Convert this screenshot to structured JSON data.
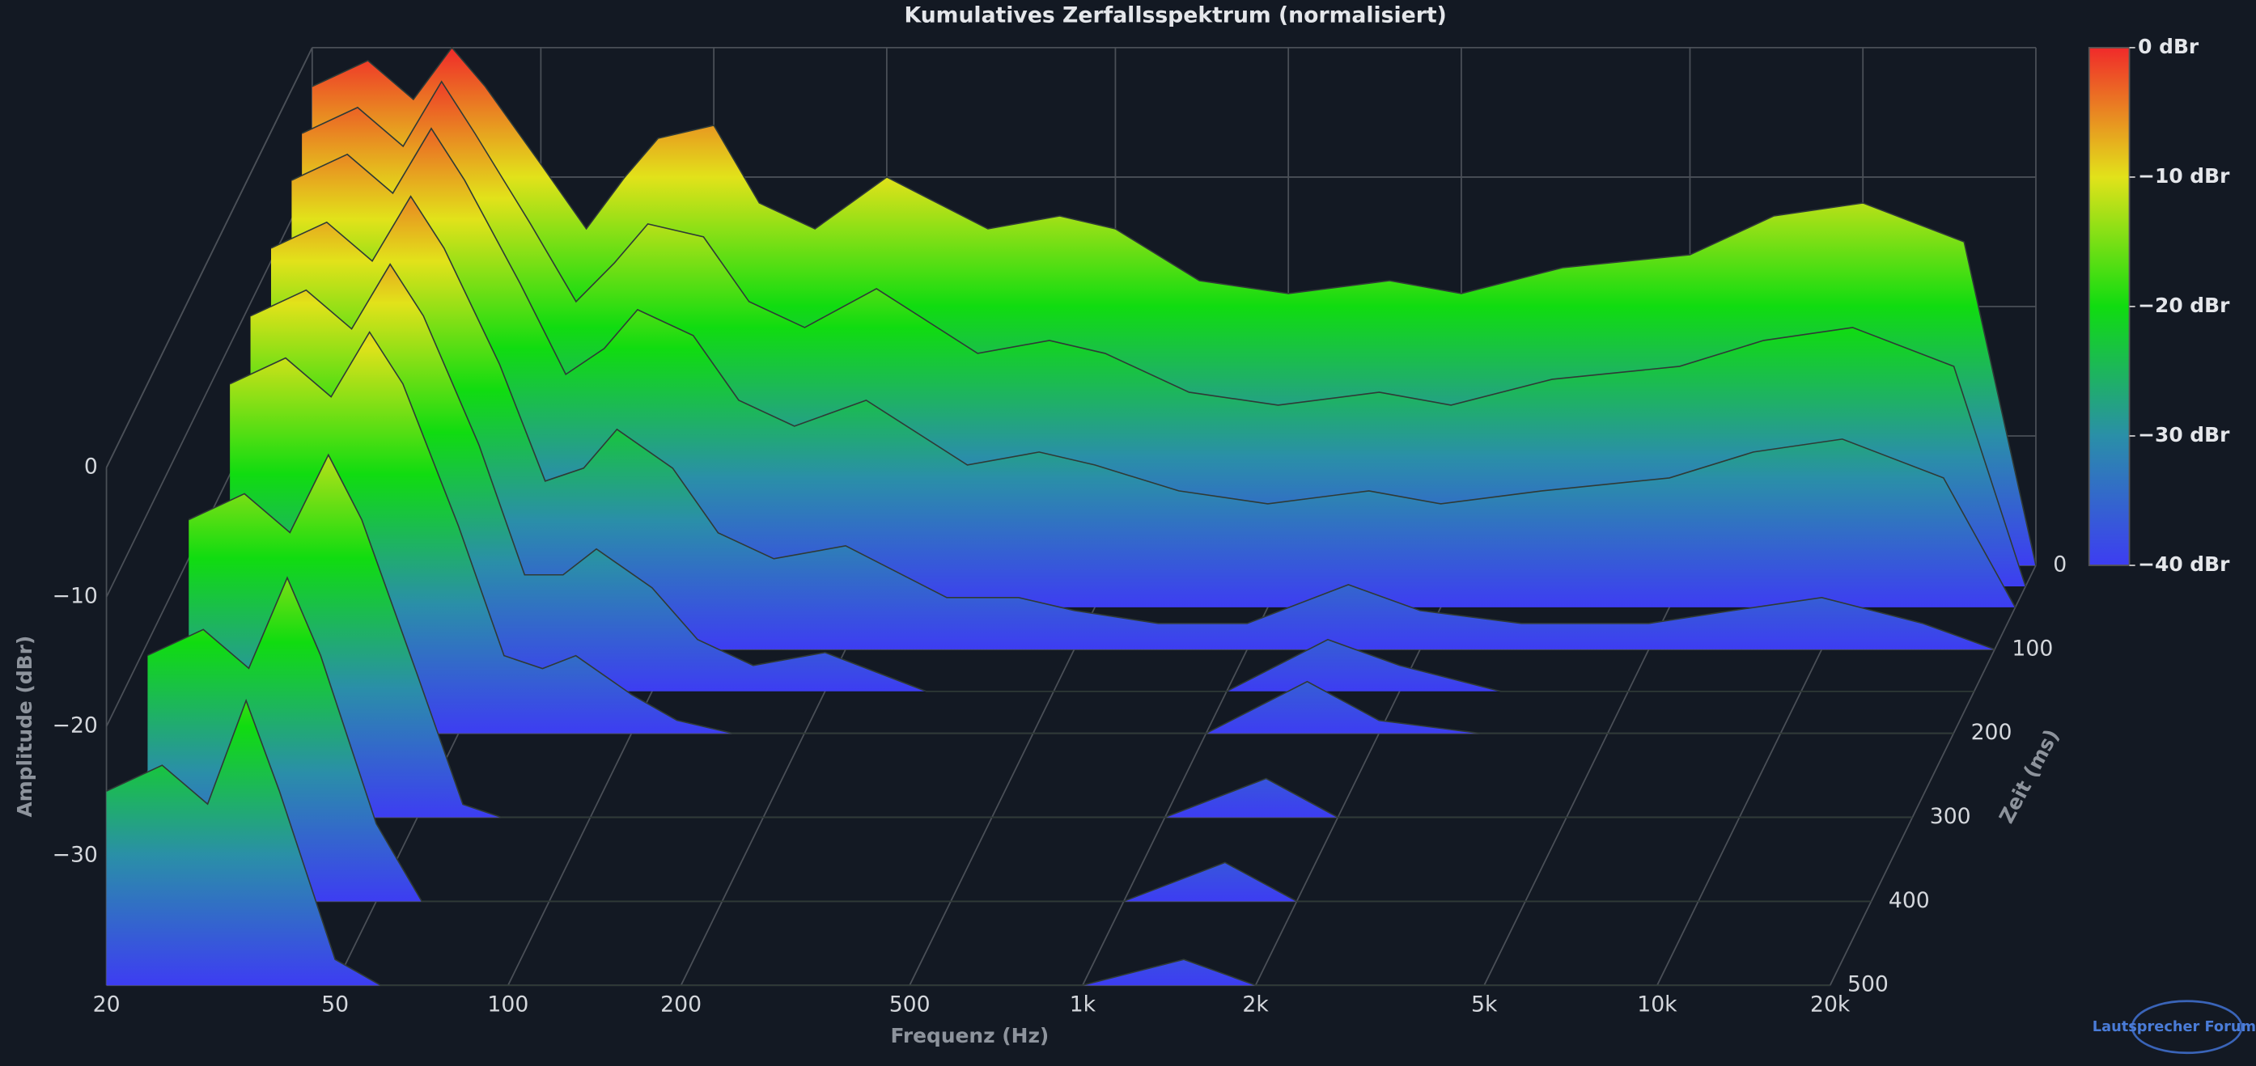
{
  "chart_data": {
    "type": "waterfall",
    "title": "Kumulatives Zerfallsspektrum (normalisiert)",
    "x_label": "Frequenz (Hz)",
    "y_label": "Amplitude (dBr)",
    "z_label": "Zeit (ms)",
    "x": [
      20,
      25,
      30,
      35,
      40,
      50,
      60,
      70,
      80,
      100,
      120,
      150,
      200,
      300,
      400,
      500,
      700,
      1000,
      1500,
      2000,
      3000,
      5000,
      7000,
      10000,
      15000,
      20000
    ],
    "slices": [
      {
        "time": 0,
        "values": [
          -3,
          -1,
          -4,
          0,
          -3,
          -9,
          -14,
          -10,
          -7,
          -6,
          -12,
          -14,
          -10,
          -14,
          -13,
          -14,
          -18,
          -19,
          -18,
          -19,
          -17,
          -16,
          -13,
          -12,
          -15,
          -40
        ]
      },
      {
        "time": 25,
        "values": [
          -5,
          -3,
          -6,
          -1,
          -5,
          -12,
          -18,
          -15,
          -12,
          -13,
          -18,
          -20,
          -17,
          -22,
          -21,
          -22,
          -25,
          -26,
          -25,
          -26,
          -24,
          -23,
          -21,
          -20,
          -23,
          -40
        ]
      },
      {
        "time": 50,
        "values": [
          -7,
          -5,
          -8,
          -3,
          -7,
          -15,
          -22,
          -20,
          -17,
          -19,
          -24,
          -26,
          -24,
          -29,
          -28,
          -29,
          -31,
          -32,
          -31,
          -32,
          -31,
          -30,
          -28,
          -27,
          -30,
          -40
        ]
      },
      {
        "time": 100,
        "values": [
          -9,
          -7,
          -10,
          -5,
          -9,
          -18,
          -27,
          -26,
          -23,
          -26,
          -31,
          -33,
          -32,
          -36,
          -36,
          -37,
          -38,
          -38,
          -35,
          -37,
          -38,
          -38,
          -37,
          -36,
          -38,
          -40
        ]
      },
      {
        "time": 150,
        "values": [
          -11,
          -9,
          -12,
          -7,
          -11,
          -21,
          -31,
          -31,
          -29,
          -32,
          -36,
          -38,
          -37,
          -40,
          -40,
          -40,
          -40,
          -40,
          -36,
          -38,
          -40,
          -40,
          -40,
          -40,
          -40,
          -40
        ]
      },
      {
        "time": 200,
        "values": [
          -13,
          -11,
          -14,
          -9,
          -13,
          -24,
          -34,
          -35,
          -34,
          -37,
          -39,
          -40,
          -40,
          -40,
          -40,
          -40,
          -40,
          -40,
          -36,
          -39,
          -40,
          -40,
          -40,
          -40,
          -40,
          -40
        ]
      },
      {
        "time": 300,
        "values": [
          -17,
          -15,
          -18,
          -12,
          -17,
          -29,
          -39,
          -40,
          -40,
          -40,
          -40,
          -40,
          -40,
          -40,
          -40,
          -40,
          -40,
          -40,
          -37,
          -40,
          -40,
          -40,
          -40,
          -40,
          -40,
          -40
        ]
      },
      {
        "time": 400,
        "values": [
          -21,
          -19,
          -22,
          -15,
          -21,
          -34,
          -40,
          -40,
          -40,
          -40,
          -40,
          -40,
          -40,
          -40,
          -40,
          -40,
          -40,
          -40,
          -37,
          -40,
          -40,
          -40,
          -40,
          -40,
          -40,
          -40
        ]
      },
      {
        "time": 500,
        "values": [
          -25,
          -23,
          -26,
          -18,
          -25,
          -38,
          -40,
          -40,
          -40,
          -40,
          -40,
          -40,
          -40,
          -40,
          -40,
          -40,
          -40,
          -40,
          -38,
          -40,
          -40,
          -40,
          -40,
          -40,
          -40,
          -40
        ]
      }
    ],
    "xscale": "log",
    "xlim": [
      20,
      20000
    ],
    "xticks": [
      20,
      50,
      100,
      200,
      500,
      {
        "value": 1000,
        "label": "1k"
      },
      {
        "value": 2000,
        "label": "2k"
      },
      {
        "value": 5000,
        "label": "5k"
      },
      {
        "value": 10000,
        "label": "10k"
      },
      {
        "value": 20000,
        "label": "20k"
      }
    ],
    "ylim": [
      -40,
      0
    ],
    "yticks": [
      0,
      {
        "value": -10,
        "label": "−10"
      },
      {
        "value": -20,
        "label": "−20"
      },
      {
        "value": -30,
        "label": "−30"
      }
    ],
    "zlim": [
      0,
      500
    ],
    "zticks": [
      0,
      100,
      200,
      300,
      400,
      500
    ],
    "grid": true,
    "colorbar": {
      "clim": [
        -40,
        0
      ],
      "colormap": [
        "#3d3df2",
        "#2a8fa8",
        "#10dc10",
        "#e2e21a",
        "#f02a2a"
      ],
      "ticks": [
        {
          "value": 0,
          "label": "0 dBr"
        },
        {
          "value": -10,
          "label": "−10 dBr"
        },
        {
          "value": -20,
          "label": "−20 dBr"
        },
        {
          "value": -30,
          "label": "−30 dBr"
        },
        {
          "value": -40,
          "label": "−40 dBr"
        }
      ]
    },
    "watermark": "Lautsprecher Forum.eu"
  }
}
